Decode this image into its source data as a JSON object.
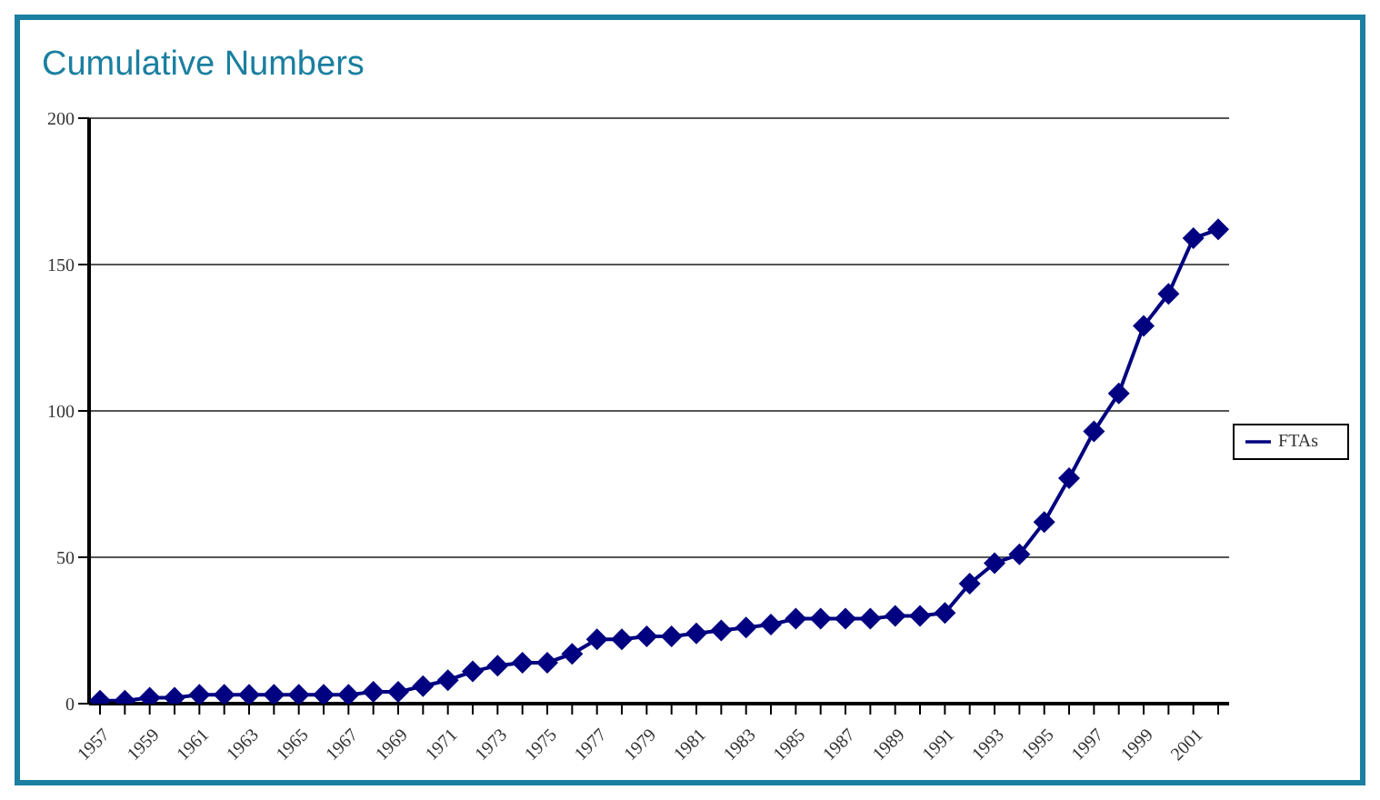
{
  "chart_data": {
    "type": "line",
    "title": "Cumulative Numbers",
    "categories": [
      "1957",
      null,
      "1959",
      null,
      "1961",
      null,
      "1963",
      null,
      "1965",
      null,
      "1967",
      null,
      "1969",
      null,
      "1971",
      null,
      "1973",
      null,
      "1975",
      null,
      "1977",
      null,
      "1979",
      null,
      "1981",
      null,
      "1983",
      null,
      "1985",
      null,
      "1987",
      null,
      "1989",
      null,
      "1991",
      null,
      "1993",
      null,
      "1995",
      null,
      "1997",
      null,
      "1999",
      null,
      "2001",
      null
    ],
    "series": [
      {
        "name": "FTAs",
        "color": "#000080",
        "values": [
          1,
          1,
          2,
          2,
          3,
          3,
          3,
          3,
          3,
          3,
          3,
          4,
          4,
          6,
          8,
          11,
          13,
          14,
          14,
          17,
          22,
          22,
          23,
          23,
          24,
          25,
          26,
          27,
          29,
          29,
          29,
          29,
          30,
          30,
          31,
          41,
          48,
          51,
          62,
          77,
          93,
          106,
          129,
          140,
          159,
          162
        ]
      }
    ],
    "ylim": [
      0,
      200
    ],
    "yticks": [
      0,
      50,
      100,
      150,
      200
    ],
    "grid": "y",
    "legend": "right",
    "marker": "diamond",
    "line_style": "solid"
  }
}
